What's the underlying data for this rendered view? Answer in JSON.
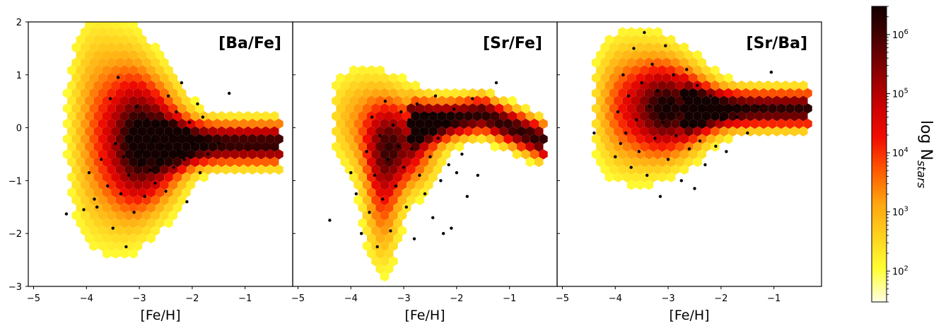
{
  "chart_data": {
    "type": "heatmap",
    "colorbar": {
      "label": "log N",
      "label_subscript": "stars",
      "scale": "log",
      "range": [
        30,
        3000000
      ],
      "tick_labels": [
        {
          "value": 100,
          "base": "10",
          "exp": "2"
        },
        {
          "value": 1000,
          "base": "10",
          "exp": "3"
        },
        {
          "value": 10000,
          "base": "10",
          "exp": "4"
        },
        {
          "value": 100000,
          "base": "10",
          "exp": "5"
        },
        {
          "value": 1000000,
          "base": "10",
          "exp": "6"
        }
      ],
      "colormap": [
        "#ffffe6",
        "#ffff33",
        "#ffd21e",
        "#ffa50f",
        "#ff5a00",
        "#f20c00",
        "#c80000",
        "#8c0000",
        "#4b0000",
        "#120000"
      ]
    },
    "xlabel": "[Fe/H]",
    "xlim": [
      -5.1,
      -0.1
    ],
    "ylim": [
      -3,
      2
    ],
    "x_ticks": [
      -5,
      -4,
      -3,
      -2,
      -1
    ],
    "x_tick_labels": [
      "−5",
      "−4",
      "−3",
      "−2",
      "−1"
    ],
    "y_ticks": [
      -3,
      -2,
      -1,
      0,
      1,
      2
    ],
    "y_tick_labels": [
      "−3",
      "−2",
      "−1",
      "0",
      "1",
      "2"
    ],
    "panels": [
      {
        "label": "[Ba/Fe]",
        "overview": "yellow low-density hexbins spread from [Fe/H] -4.5 to -3 over -2.8..1.6; dense dark-red band from -2.5 to -0.3 at about -0.3; black scatter points concentrated between -3.5 and -2 around -0.4",
        "scatter_points": [
          [
            -4.38,
            -1.63
          ],
          [
            -4.05,
            -1.55
          ],
          [
            -3.95,
            -0.85
          ],
          [
            -3.85,
            -1.35
          ],
          [
            -3.8,
            -1.5
          ],
          [
            -3.72,
            -0.6
          ],
          [
            -3.6,
            -1.1
          ],
          [
            -3.55,
            0.55
          ],
          [
            -3.5,
            -1.9
          ],
          [
            -3.45,
            -0.3
          ],
          [
            -3.4,
            0.95
          ],
          [
            -3.35,
            -1.25
          ],
          [
            -3.3,
            -0.55
          ],
          [
            -3.25,
            -2.25
          ],
          [
            -3.2,
            -0.9
          ],
          [
            -3.15,
            -0.2
          ],
          [
            -3.1,
            -1.6
          ],
          [
            -3.05,
            0.4
          ],
          [
            -3.0,
            -0.7
          ],
          [
            -2.95,
            -0.45
          ],
          [
            -2.9,
            -1.3
          ],
          [
            -2.85,
            0.15
          ],
          [
            -2.8,
            -0.8
          ],
          [
            -2.75,
            -0.25
          ],
          [
            -2.7,
            -1.05
          ],
          [
            -2.65,
            0.05
          ],
          [
            -2.6,
            -0.6
          ],
          [
            -2.55,
            -0.35
          ],
          [
            -2.5,
            -1.2
          ],
          [
            -2.45,
            0.6
          ],
          [
            -2.4,
            -0.15
          ],
          [
            -2.35,
            -0.75
          ],
          [
            -2.3,
            0.3
          ],
          [
            -2.25,
            -0.45
          ],
          [
            -2.2,
            0.85
          ],
          [
            -2.15,
            -0.6
          ],
          [
            -2.1,
            -1.4
          ],
          [
            -2.05,
            0.1
          ],
          [
            -2.0,
            -0.3
          ],
          [
            -1.9,
            0.45
          ],
          [
            -1.85,
            -0.85
          ],
          [
            -1.8,
            0.2
          ],
          [
            -1.7,
            -0.5
          ],
          [
            -1.5,
            -0.3
          ],
          [
            -1.3,
            0.65
          ]
        ]
      },
      {
        "label": "[Sr/Fe]",
        "overview": "yellow hexbins at low metallicity from 1.1 down to below -3 near [Fe/H] -3.5; dense dark-red band rising from 0 at -2.5 to about 0.3 at -1.5 and falling to -0.3 at -0.4; black scatter points between -3.8 and -2 spread from -2.2 to 0.9",
        "scatter_points": [
          [
            -4.4,
            -1.75
          ],
          [
            -4.0,
            -0.85
          ],
          [
            -3.9,
            -1.25
          ],
          [
            -3.8,
            -2.0
          ],
          [
            -3.7,
            -0.45
          ],
          [
            -3.65,
            -1.6
          ],
          [
            -3.6,
            0.2
          ],
          [
            -3.55,
            -0.9
          ],
          [
            -3.5,
            -2.25
          ],
          [
            -3.45,
            -0.15
          ],
          [
            -3.4,
            -1.35
          ],
          [
            -3.35,
            0.5
          ],
          [
            -3.3,
            -0.6
          ],
          [
            -3.25,
            -1.95
          ],
          [
            -3.2,
            0.05
          ],
          [
            -3.15,
            -1.1
          ],
          [
            -3.1,
            -0.35
          ],
          [
            -3.05,
            0.3
          ],
          [
            -3.0,
            -0.75
          ],
          [
            -2.95,
            -1.5
          ],
          [
            -2.9,
            0.15
          ],
          [
            -2.85,
            -0.4
          ],
          [
            -2.8,
            -2.1
          ],
          [
            -2.75,
            0.45
          ],
          [
            -2.7,
            -0.9
          ],
          [
            -2.65,
            -0.05
          ],
          [
            -2.6,
            -1.25
          ],
          [
            -2.55,
            0.25
          ],
          [
            -2.5,
            -0.55
          ],
          [
            -2.45,
            -1.7
          ],
          [
            -2.4,
            0.6
          ],
          [
            -2.35,
            -0.2
          ],
          [
            -2.3,
            -1.0
          ],
          [
            -2.25,
            -2.0
          ],
          [
            -2.2,
            0.1
          ],
          [
            -2.15,
            -0.7
          ],
          [
            -2.1,
            -1.9
          ],
          [
            -2.05,
            0.35
          ],
          [
            -2.0,
            -0.85
          ],
          [
            -1.9,
            -0.5
          ],
          [
            -1.8,
            -1.3
          ],
          [
            -1.7,
            0.55
          ],
          [
            -1.6,
            -0.9
          ],
          [
            -1.25,
            0.85
          ]
        ]
      },
      {
        "label": "[Sr/Ba]",
        "overview": "yellow hexbins around [Fe/H] -4 from -0.6 to 1.6; dense dark-red band from -2.5 to -0.3 at about 0.3; black scatter points between -3.8 and -2 spread from -1.3 to 1.8",
        "scatter_points": [
          [
            -4.4,
            -0.1
          ],
          [
            -4.0,
            -0.55
          ],
          [
            -3.95,
            0.3
          ],
          [
            -3.9,
            -0.3
          ],
          [
            -3.85,
            1.0
          ],
          [
            -3.8,
            -0.1
          ],
          [
            -3.75,
            0.6
          ],
          [
            -3.7,
            -0.75
          ],
          [
            -3.65,
            1.5
          ],
          [
            -3.6,
            0.15
          ],
          [
            -3.55,
            -0.45
          ],
          [
            -3.5,
            0.85
          ],
          [
            -3.45,
            1.8
          ],
          [
            -3.4,
            -0.9
          ],
          [
            -3.35,
            0.4
          ],
          [
            -3.3,
            1.2
          ],
          [
            -3.25,
            -0.2
          ],
          [
            -3.2,
            0.7
          ],
          [
            -3.15,
            -1.3
          ],
          [
            -3.1,
            0.1
          ],
          [
            -3.05,
            1.55
          ],
          [
            -3.0,
            -0.6
          ],
          [
            -2.95,
            0.45
          ],
          [
            -2.9,
            1.0
          ],
          [
            -2.85,
            -0.15
          ],
          [
            -2.8,
            0.25
          ],
          [
            -2.75,
            -1.0
          ],
          [
            -2.7,
            0.55
          ],
          [
            -2.65,
            1.1
          ],
          [
            -2.6,
            -0.4
          ],
          [
            -2.55,
            0.05
          ],
          [
            -2.5,
            -1.15
          ],
          [
            -2.45,
            0.8
          ],
          [
            -2.4,
            -0.25
          ],
          [
            -2.35,
            0.35
          ],
          [
            -2.3,
            -0.7
          ],
          [
            -2.2,
            0.6
          ],
          [
            -2.1,
            -0.35
          ],
          [
            -2.0,
            0.15
          ],
          [
            -1.9,
            -0.45
          ],
          [
            -1.7,
            0.2
          ],
          [
            -1.5,
            -0.1
          ],
          [
            -1.3,
            0.4
          ],
          [
            -1.05,
            1.05
          ]
        ]
      }
    ]
  }
}
